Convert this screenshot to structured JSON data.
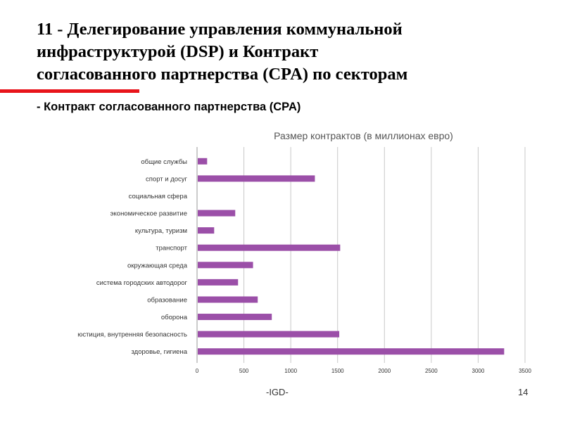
{
  "slide": {
    "title_lines": [
      "11 - Делегирование управления коммунальной",
      "инфраструктурой  (DSP) и Контракт",
      "согласованного партнерства (CPA) по секторам"
    ],
    "subtitle": "- Контракт согласованного партнерства (CPA)",
    "footer_center": "-IGD-",
    "page_number": "14"
  },
  "colors": {
    "accent": "#e8141b",
    "bar": "#9b4fa8",
    "grid": "#c8c8c8",
    "axis_text": "#333333"
  },
  "chart_data": {
    "type": "bar",
    "orientation": "horizontal",
    "title": "Размер контрактов (в миллионах евро)",
    "categories": [
      "общие службы",
      "спорт и досуг",
      "социальная сфера",
      "экономическое развитие",
      "культура, туризм",
      "транспорт",
      "окружающая среда",
      "система городских автодорог",
      "образование",
      "оборона",
      "юстиция, внутренняя безопасность",
      "здоровье, гигиена"
    ],
    "values": [
      100,
      1250,
      0,
      400,
      175,
      1520,
      590,
      430,
      640,
      790,
      1510,
      3270
    ],
    "xlim": [
      0,
      3500
    ],
    "xticks": [
      "0",
      "500",
      "1000",
      "1500",
      "2000",
      "2500",
      "3000",
      "3500"
    ],
    "grid": true,
    "legend": "none"
  }
}
